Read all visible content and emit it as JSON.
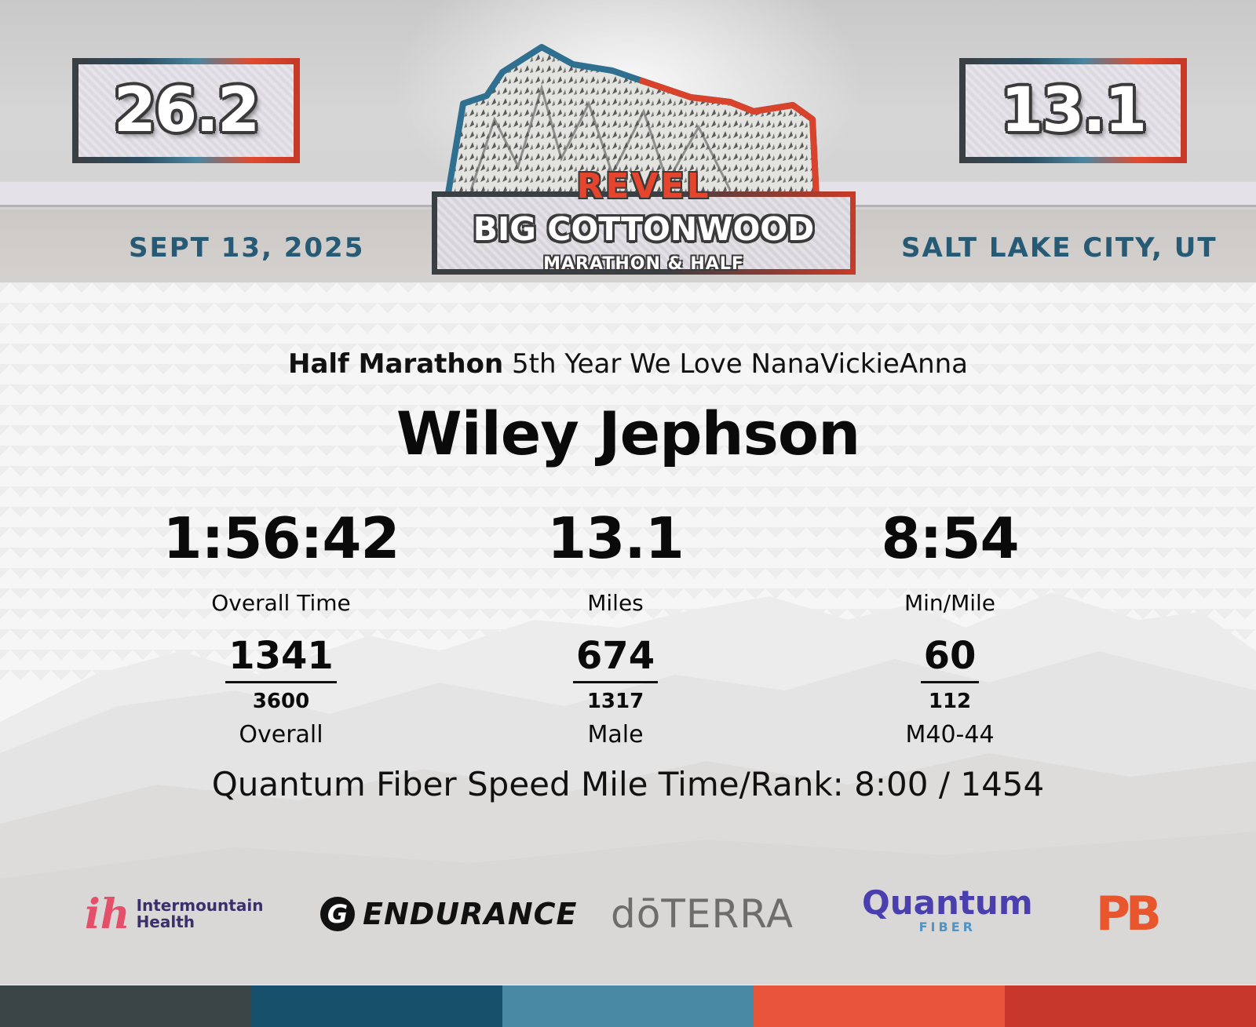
{
  "header": {
    "full_distance": "26.2",
    "half_distance": "13.1",
    "date": "SEPT 13, 2025",
    "location": "SALT LAKE CITY, UT",
    "logo": {
      "brand": "REVEL",
      "race_name": "BIG COTTONWOOD",
      "race_subtitle": "MARATHON & HALF"
    }
  },
  "result": {
    "event": "Half Marathon",
    "team": "5th Year We Love NanaVickieAnna",
    "runner_name": "Wiley Jephson",
    "stats": [
      {
        "value": "1:56:42",
        "label": "Overall Time"
      },
      {
        "value": "13.1",
        "label": "Miles"
      },
      {
        "value": "8:54",
        "label": "Min/Mile"
      }
    ],
    "ranks": [
      {
        "place": "1341",
        "total": "3600",
        "label": "Overall"
      },
      {
        "place": "674",
        "total": "1317",
        "label": "Male"
      },
      {
        "place": "60",
        "total": "112",
        "label": "M40-44"
      }
    ],
    "speed_mile": "Quantum Fiber Speed Mile Time/Rank: 8:00 / 1454"
  },
  "sponsors": {
    "intermountain_line1": "Intermountain",
    "intermountain_line2": "Health",
    "gatorade": "ENDURANCE",
    "doterra": "dōTERRA",
    "quantum": "Quantum",
    "quantum_sub": "FIBER",
    "pbfit": "PB"
  },
  "colors": {
    "accent_blue": "#265a75",
    "accent_red": "#e5452c",
    "bar": [
      "#3b4447",
      "#17506b",
      "#4a89a3",
      "#e8553a",
      "#c8372b"
    ]
  }
}
